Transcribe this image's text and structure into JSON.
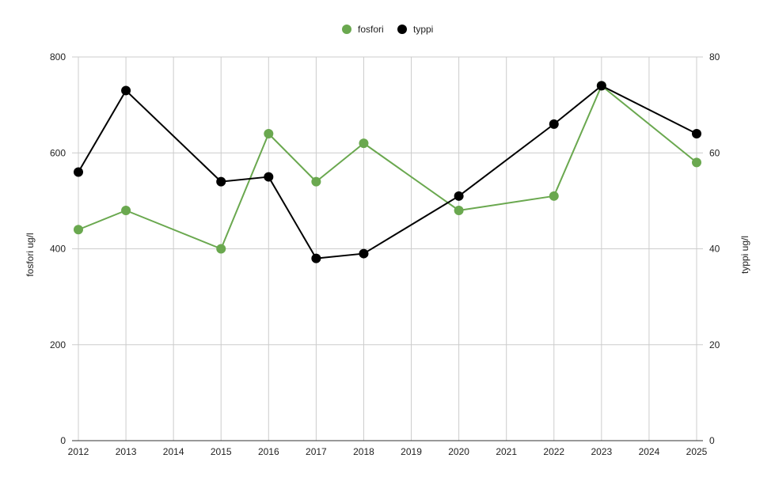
{
  "chart_data": {
    "type": "line",
    "title": "",
    "legend_position": "top-center",
    "grid": true,
    "x": [
      "2012",
      "2013",
      "2014",
      "2015",
      "2016",
      "2017",
      "2018",
      "2019",
      "2020",
      "2021",
      "2022",
      "2023",
      "2024",
      "2025"
    ],
    "x_ticks": [
      "2012",
      "2013",
      "2014",
      "2015",
      "2016",
      "2017",
      "2018",
      "2019",
      "2020",
      "2021",
      "2022",
      "2023",
      "2024",
      "2025"
    ],
    "ylabel_left": "fosfori ug/l",
    "ylabel_right": "typpi ug/l",
    "ylim_left": [
      0,
      800
    ],
    "ylim_right": [
      0,
      80
    ],
    "y_ticks_left": [
      "0",
      "200",
      "400",
      "600",
      "800"
    ],
    "y_ticks_right": [
      "0",
      "20",
      "40",
      "60",
      "80"
    ],
    "series": [
      {
        "name": "fosfori",
        "axis": "left",
        "color": "#6aa84f",
        "points": [
          {
            "x": "2012",
            "y": 440
          },
          {
            "x": "2013",
            "y": 480
          },
          {
            "x": "2015",
            "y": 400
          },
          {
            "x": "2016",
            "y": 640
          },
          {
            "x": "2017",
            "y": 540
          },
          {
            "x": "2018",
            "y": 620
          },
          {
            "x": "2020",
            "y": 480
          },
          {
            "x": "2022",
            "y": 510
          },
          {
            "x": "2023",
            "y": 740
          },
          {
            "x": "2025",
            "y": 580
          }
        ]
      },
      {
        "name": "typpi",
        "axis": "right",
        "color": "#000000",
        "points": [
          {
            "x": "2012",
            "y": 56
          },
          {
            "x": "2013",
            "y": 73
          },
          {
            "x": "2015",
            "y": 54
          },
          {
            "x": "2016",
            "y": 55
          },
          {
            "x": "2017",
            "y": 38
          },
          {
            "x": "2018",
            "y": 39
          },
          {
            "x": "2020",
            "y": 51
          },
          {
            "x": "2022",
            "y": 66
          },
          {
            "x": "2023",
            "y": 74
          },
          {
            "x": "2025",
            "y": 64
          }
        ]
      }
    ]
  }
}
